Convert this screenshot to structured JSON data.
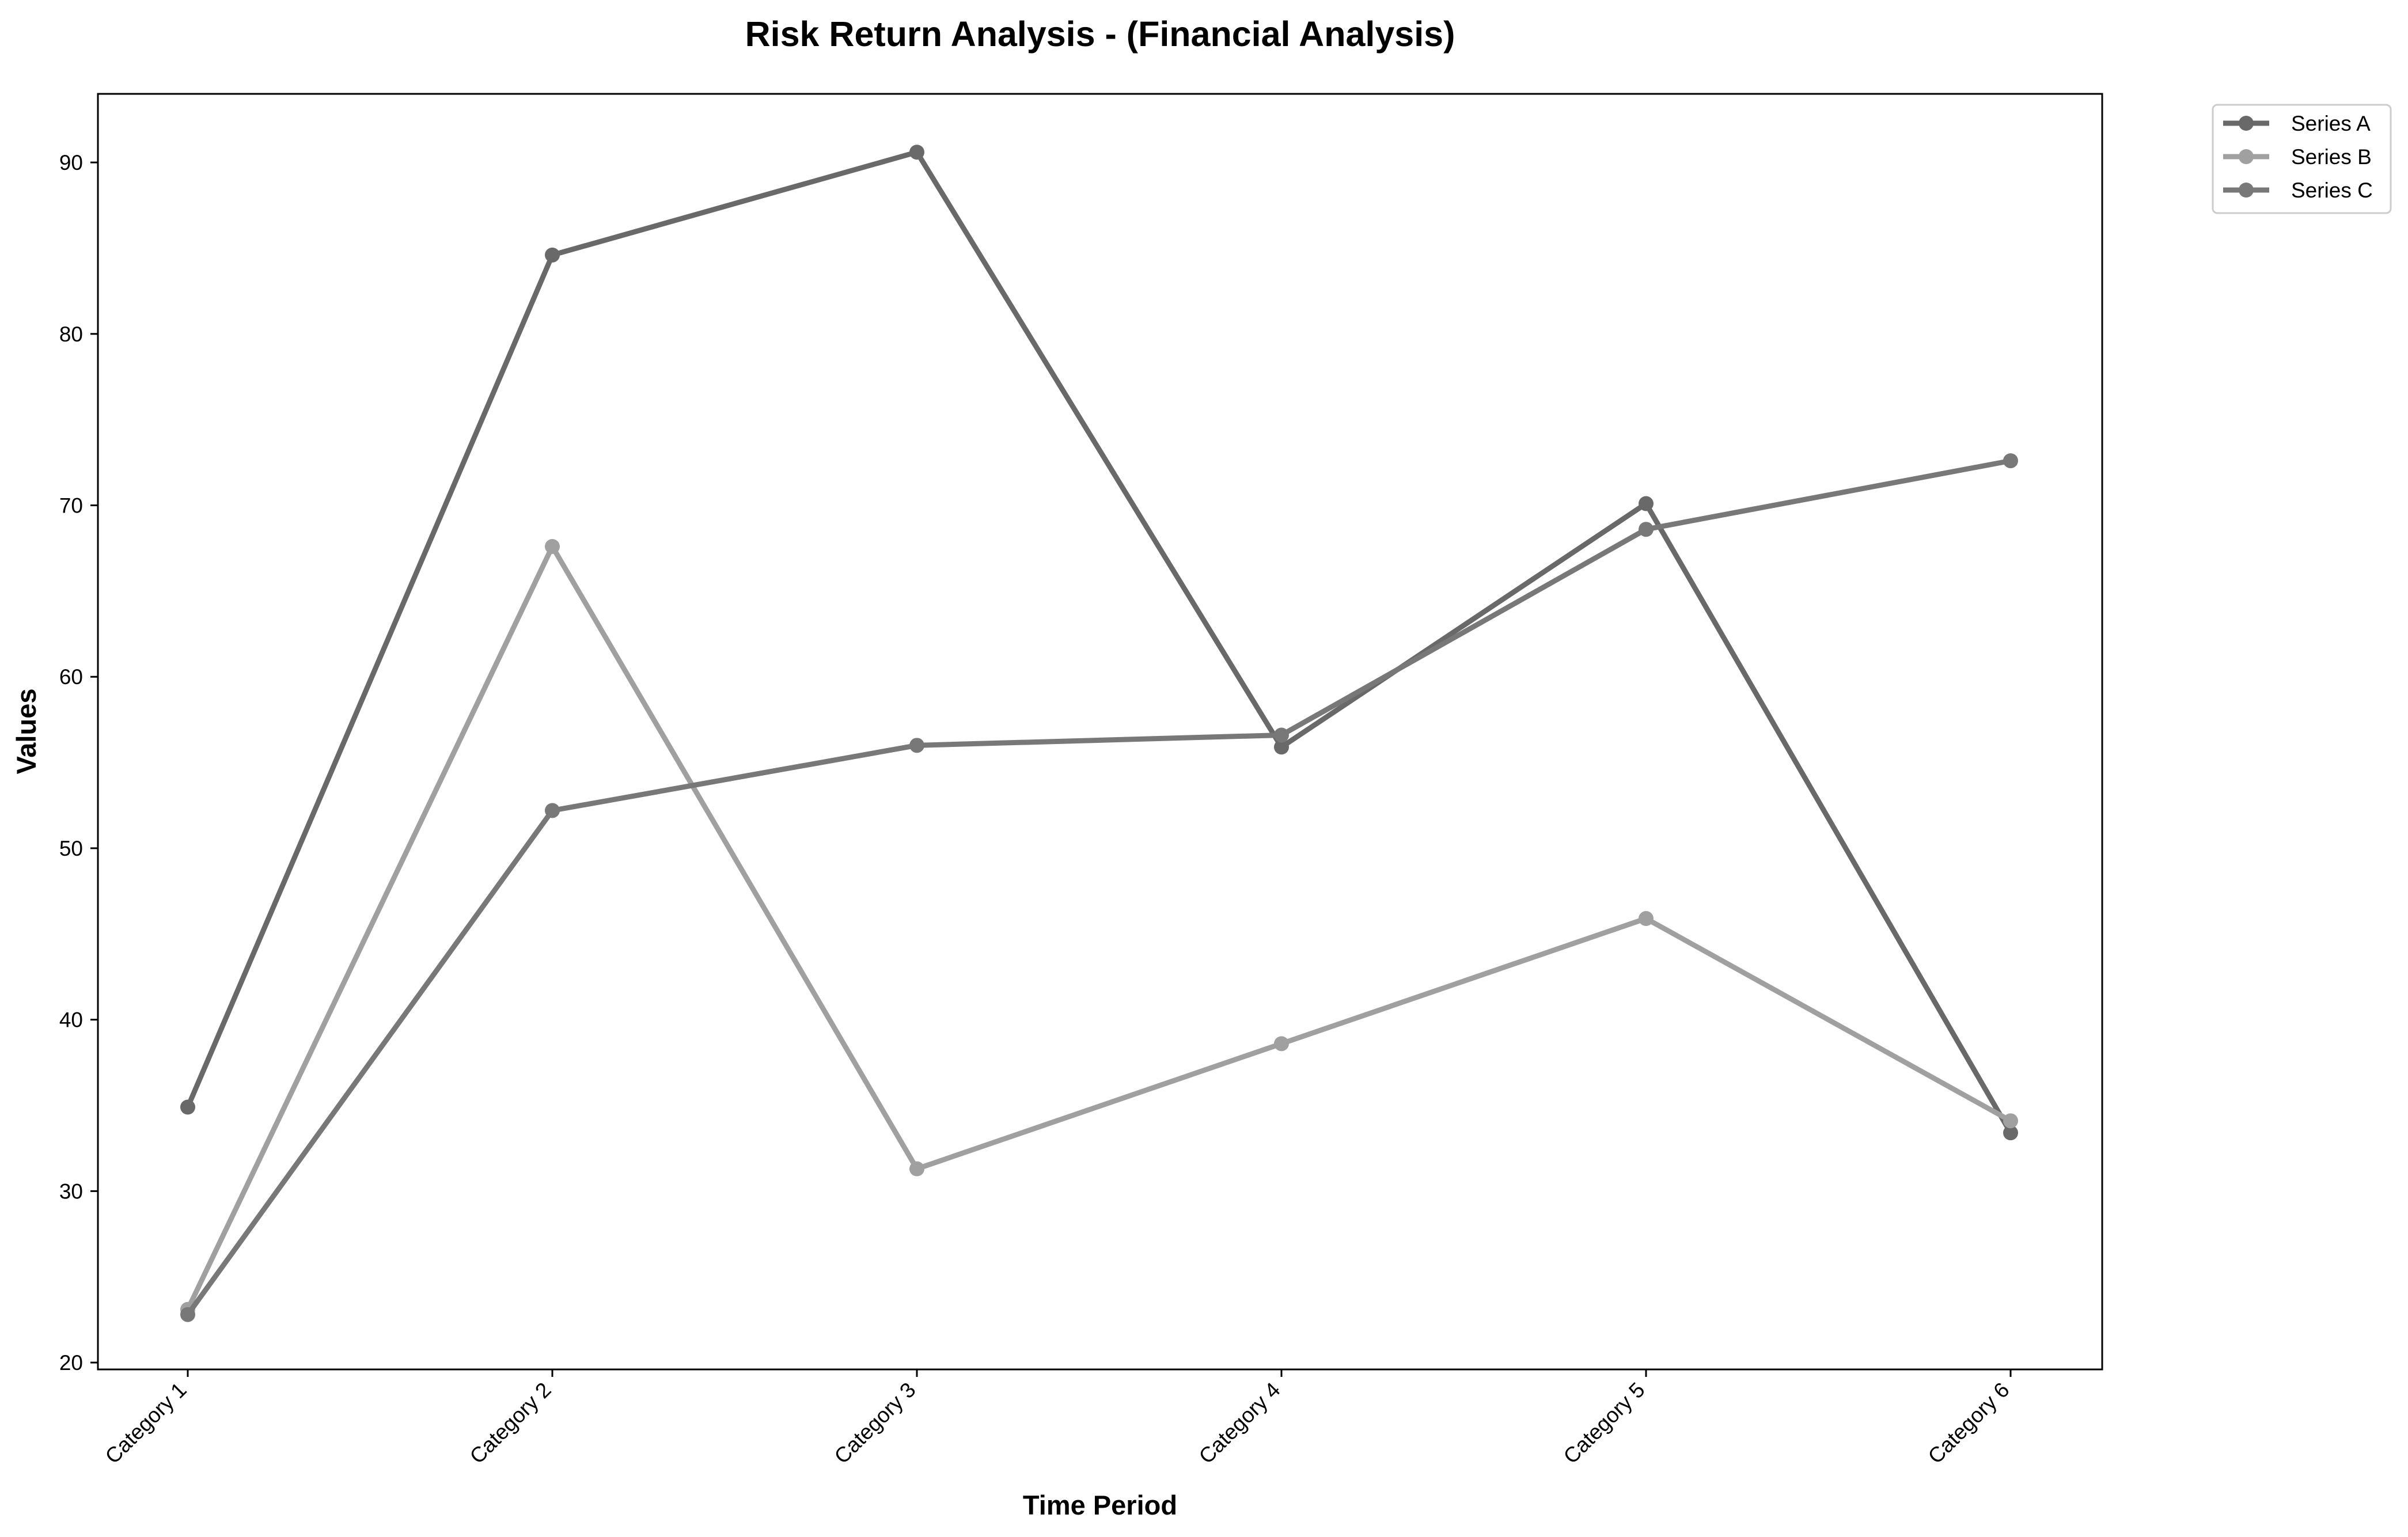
{
  "chart_data": {
    "type": "line",
    "title": "Risk Return Analysis - (Financial Analysis)",
    "xlabel": "Time Period",
    "ylabel": "Values",
    "categories": [
      "Category 1",
      "Category 2",
      "Category 3",
      "Category 4",
      "Category 5",
      "Category 6"
    ],
    "ylim": [
      19.6,
      94
    ],
    "yticks": [
      20,
      30,
      40,
      50,
      60,
      70,
      80,
      90
    ],
    "grid": false,
    "legend_position": "upper right, outside plot",
    "series": [
      {
        "name": "Series A",
        "values": [
          34.9,
          84.6,
          90.6,
          55.9,
          70.1,
          33.4
        ],
        "color": "#696969"
      },
      {
        "name": "Series B",
        "values": [
          23.1,
          67.6,
          31.3,
          38.6,
          45.9,
          34.1
        ],
        "color": "#a0a0a0"
      },
      {
        "name": "Series C",
        "values": [
          22.8,
          52.2,
          56.0,
          56.6,
          68.6,
          72.6
        ],
        "color": "#787878"
      }
    ]
  }
}
